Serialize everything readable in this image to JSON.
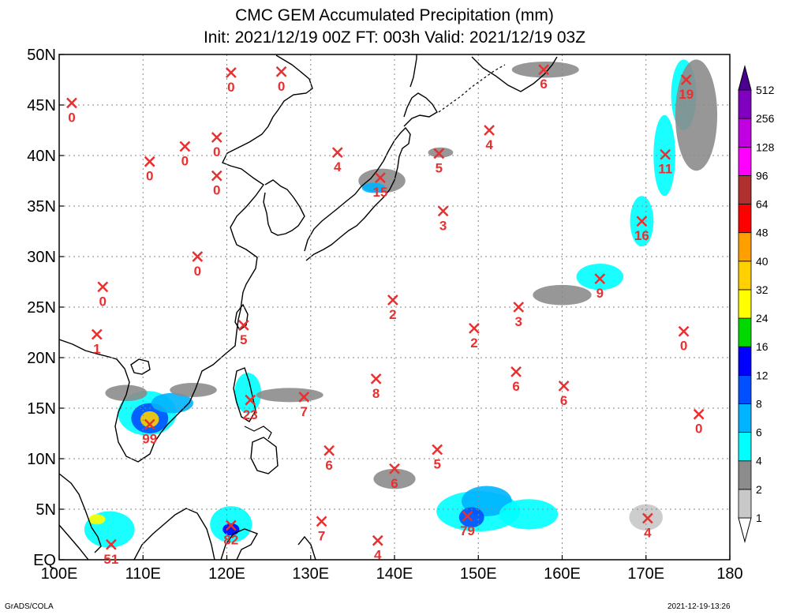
{
  "chart_data": {
    "type": "heatmap",
    "title": "CMC GEM Accumulated Precipitation (mm)",
    "subtitle": "Init: 2021/12/19 00Z  FT: 003h  Valid: 2021/12/19 03Z",
    "x_ticks": [
      "100E",
      "110E",
      "120E",
      "130E",
      "140E",
      "150E",
      "160E",
      "170E",
      "180"
    ],
    "y_ticks": [
      "EQ",
      "5N",
      "10N",
      "15N",
      "20N",
      "25N",
      "30N",
      "35N",
      "40N",
      "45N",
      "50N"
    ],
    "xlim": [
      100,
      180
    ],
    "ylim": [
      0,
      50
    ],
    "grid": true,
    "colorbar": {
      "levels": [
        "1",
        "2",
        "4",
        "6",
        "8",
        "12",
        "16",
        "24",
        "32",
        "40",
        "48",
        "64",
        "96",
        "128",
        "256",
        "512"
      ],
      "colors": [
        "#ffffff",
        "#c8c8c8",
        "#8c8c8c",
        "#00ffff",
        "#00b4ff",
        "#0050ff",
        "#0000ff",
        "#00d800",
        "#ffff00",
        "#ffd000",
        "#ffa000",
        "#ff0000",
        "#b03030",
        "#ff00ff",
        "#c000e0",
        "#8000c0",
        "#4a0090"
      ]
    },
    "markers": [
      {
        "lon": 101.5,
        "lat": 45.2,
        "value": "0"
      },
      {
        "lon": 105.2,
        "lat": 27.0,
        "value": "0"
      },
      {
        "lon": 104.5,
        "lat": 22.3,
        "value": "1"
      },
      {
        "lon": 110.8,
        "lat": 39.4,
        "value": "0"
      },
      {
        "lon": 115.0,
        "lat": 40.9,
        "value": "0"
      },
      {
        "lon": 120.5,
        "lat": 48.2,
        "value": "0"
      },
      {
        "lon": 126.5,
        "lat": 48.3,
        "value": "0"
      },
      {
        "lon": 118.8,
        "lat": 41.8,
        "value": "0"
      },
      {
        "lon": 118.8,
        "lat": 38.0,
        "value": "0"
      },
      {
        "lon": 116.5,
        "lat": 30.0,
        "value": "0"
      },
      {
        "lon": 133.2,
        "lat": 40.3,
        "value": "4"
      },
      {
        "lon": 138.3,
        "lat": 37.8,
        "value": "15"
      },
      {
        "lon": 145.3,
        "lat": 40.2,
        "value": "5"
      },
      {
        "lon": 151.3,
        "lat": 42.5,
        "value": "4"
      },
      {
        "lon": 157.8,
        "lat": 48.5,
        "value": "6"
      },
      {
        "lon": 174.8,
        "lat": 47.5,
        "value": "19"
      },
      {
        "lon": 172.3,
        "lat": 40.1,
        "value": "11"
      },
      {
        "lon": 169.5,
        "lat": 33.5,
        "value": "16"
      },
      {
        "lon": 164.5,
        "lat": 27.8,
        "value": "9"
      },
      {
        "lon": 145.8,
        "lat": 34.5,
        "value": "3"
      },
      {
        "lon": 139.8,
        "lat": 25.7,
        "value": "2"
      },
      {
        "lon": 149.5,
        "lat": 22.9,
        "value": "2"
      },
      {
        "lon": 154.8,
        "lat": 25.0,
        "value": "3"
      },
      {
        "lon": 174.5,
        "lat": 22.6,
        "value": "0"
      },
      {
        "lon": 122.0,
        "lat": 23.2,
        "value": "5"
      },
      {
        "lon": 137.8,
        "lat": 17.9,
        "value": "8"
      },
      {
        "lon": 154.5,
        "lat": 18.6,
        "value": "6"
      },
      {
        "lon": 160.2,
        "lat": 17.2,
        "value": "6"
      },
      {
        "lon": 176.3,
        "lat": 14.4,
        "value": "0"
      },
      {
        "lon": 122.8,
        "lat": 15.8,
        "value": "23"
      },
      {
        "lon": 129.2,
        "lat": 16.1,
        "value": "7"
      },
      {
        "lon": 110.8,
        "lat": 13.4,
        "value": "99"
      },
      {
        "lon": 132.2,
        "lat": 10.8,
        "value": "6"
      },
      {
        "lon": 140.0,
        "lat": 9.0,
        "value": "6"
      },
      {
        "lon": 145.1,
        "lat": 10.9,
        "value": "5"
      },
      {
        "lon": 148.7,
        "lat": 4.3,
        "value": "79"
      },
      {
        "lon": 170.2,
        "lat": 4.1,
        "value": "4"
      },
      {
        "lon": 131.3,
        "lat": 3.8,
        "value": "7"
      },
      {
        "lon": 138.0,
        "lat": 1.9,
        "value": "4"
      },
      {
        "lon": 120.5,
        "lat": 3.4,
        "value": "82"
      },
      {
        "lon": 106.2,
        "lat": 1.5,
        "value": "51"
      }
    ],
    "precip_areas": [
      {
        "lon": 110.5,
        "lat": 14.5,
        "rlon": 3.5,
        "rlat": 2.2,
        "level": 3
      },
      {
        "lon": 110.8,
        "lat": 14.0,
        "rlon": 2.2,
        "rlat": 1.5,
        "level": 5
      },
      {
        "lon": 110.8,
        "lat": 13.9,
        "rlon": 1.1,
        "rlat": 0.8,
        "level": 9
      },
      {
        "lon": 113.5,
        "lat": 15.5,
        "rlon": 2.5,
        "rlat": 1.0,
        "level": 4
      },
      {
        "lon": 108.0,
        "lat": 16.5,
        "rlon": 2.5,
        "rlat": 0.8,
        "level": 2
      },
      {
        "lon": 116.0,
        "lat": 16.8,
        "rlon": 2.8,
        "rlat": 0.7,
        "level": 2
      },
      {
        "lon": 122.5,
        "lat": 16.5,
        "rlon": 1.6,
        "rlat": 2.0,
        "level": 3
      },
      {
        "lon": 127.5,
        "lat": 16.3,
        "rlon": 4.0,
        "rlat": 0.7,
        "level": 2
      },
      {
        "lon": 138.5,
        "lat": 37.5,
        "rlon": 2.8,
        "rlat": 1.2,
        "level": 2
      },
      {
        "lon": 137.5,
        "lat": 36.8,
        "rlon": 1.4,
        "rlat": 0.5,
        "level": 4
      },
      {
        "lon": 150.0,
        "lat": 4.8,
        "rlon": 5.0,
        "rlat": 2.0,
        "level": 3
      },
      {
        "lon": 151.0,
        "lat": 5.8,
        "rlon": 3.0,
        "rlat": 1.5,
        "level": 4
      },
      {
        "lon": 149.2,
        "lat": 4.2,
        "rlon": 1.5,
        "rlat": 1.0,
        "level": 5
      },
      {
        "lon": 156.0,
        "lat": 4.5,
        "rlon": 3.5,
        "rlat": 1.5,
        "level": 3
      },
      {
        "lon": 106.0,
        "lat": 3.0,
        "rlon": 3.0,
        "rlat": 1.8,
        "level": 3
      },
      {
        "lon": 104.5,
        "lat": 4.0,
        "rlon": 1.0,
        "rlat": 0.5,
        "level": 8
      },
      {
        "lon": 120.5,
        "lat": 3.5,
        "rlon": 2.5,
        "rlat": 1.8,
        "level": 3
      },
      {
        "lon": 120.5,
        "lat": 3.0,
        "rlon": 1.0,
        "rlat": 0.6,
        "level": 6
      },
      {
        "lon": 172.2,
        "lat": 40.0,
        "rlon": 1.3,
        "rlat": 4.0,
        "level": 3
      },
      {
        "lon": 174.5,
        "lat": 46.0,
        "rlon": 1.5,
        "rlat": 3.5,
        "level": 3
      },
      {
        "lon": 169.5,
        "lat": 33.5,
        "rlon": 1.4,
        "rlat": 2.5,
        "level": 3
      },
      {
        "lon": 164.5,
        "lat": 28.0,
        "rlon": 2.8,
        "rlat": 1.3,
        "level": 3
      },
      {
        "lon": 160.0,
        "lat": 26.2,
        "rlon": 3.5,
        "rlat": 1.0,
        "level": 2
      },
      {
        "lon": 176.0,
        "lat": 44.0,
        "rlon": 2.5,
        "rlat": 5.5,
        "level": 2
      },
      {
        "lon": 158.0,
        "lat": 48.5,
        "rlon": 4.0,
        "rlat": 0.8,
        "level": 2
      },
      {
        "lon": 170.0,
        "lat": 4.2,
        "rlon": 2.0,
        "rlat": 1.3,
        "level": 1
      },
      {
        "lon": 140.0,
        "lat": 8.0,
        "rlon": 2.5,
        "rlat": 1.0,
        "level": 2
      },
      {
        "lon": 145.5,
        "lat": 40.3,
        "rlon": 1.5,
        "rlat": 0.5,
        "level": 2
      }
    ]
  },
  "footer": {
    "left": "GrADS/COLA",
    "right": "2021-12-19-13:26"
  }
}
